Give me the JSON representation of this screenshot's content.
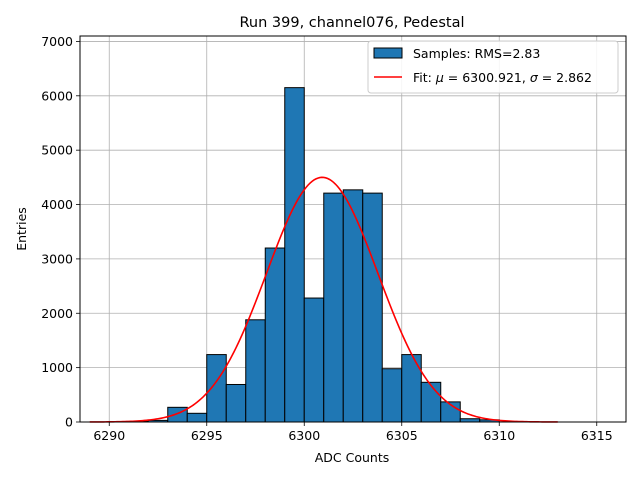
{
  "chart_data": {
    "type": "bar",
    "title": "Run 399, channel076, Pedestal",
    "xlabel": "ADC Counts",
    "ylabel": "Entries",
    "xlim": [
      6288.5,
      6316.5
    ],
    "ylim": [
      0,
      7100
    ],
    "xticks": [
      6290,
      6295,
      6300,
      6305,
      6310,
      6315
    ],
    "yticks": [
      0,
      1000,
      2000,
      3000,
      4000,
      5000,
      6000,
      7000
    ],
    "grid": true,
    "legend_position": "top-right",
    "bin_width": 1,
    "histogram": {
      "name": "Samples: RMS=2.83",
      "color": "#1f77b4",
      "edge_color": "#000000",
      "bins": [
        {
          "left": 6291,
          "count": 10
        },
        {
          "left": 6292,
          "count": 30
        },
        {
          "left": 6293,
          "count": 270
        },
        {
          "left": 6294,
          "count": 160
        },
        {
          "left": 6295,
          "count": 1240
        },
        {
          "left": 6296,
          "count": 690
        },
        {
          "left": 6297,
          "count": 1880
        },
        {
          "left": 6298,
          "count": 3200
        },
        {
          "left": 6299,
          "count": 6150
        },
        {
          "left": 6300,
          "count": 2280
        },
        {
          "left": 6301,
          "count": 4210
        },
        {
          "left": 6302,
          "count": 4270
        },
        {
          "left": 6303,
          "count": 4210
        },
        {
          "left": 6304,
          "count": 980
        },
        {
          "left": 6305,
          "count": 1240
        },
        {
          "left": 6306,
          "count": 730
        },
        {
          "left": 6307,
          "count": 370
        },
        {
          "left": 6308,
          "count": 60
        },
        {
          "left": 6309,
          "count": 40
        }
      ]
    },
    "fit": {
      "name_prefix": "Fit: ",
      "mu_label": "μ",
      "mu_value": " = 6300.921, ",
      "sigma_label": "σ",
      "sigma_value": " = 2.862",
      "color": "#ff0000",
      "mu": 6300.921,
      "sigma": 2.862,
      "amplitude": 4500,
      "x_range": [
        6289,
        6313
      ]
    }
  }
}
